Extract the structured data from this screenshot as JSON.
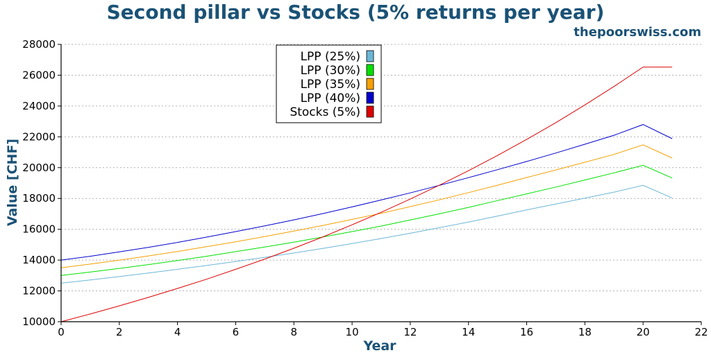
{
  "colors": {
    "title": "#1a5276",
    "grid": "#b0b0b0",
    "axis": "#000000"
  },
  "chart_data": {
    "type": "line",
    "title": "Second pillar vs Stocks (5% returns per year)",
    "watermark": "thepoorswiss.com",
    "xlabel": "Year",
    "ylabel": "Value [CHF]",
    "xlim": [
      0,
      22
    ],
    "ylim": [
      10000,
      28000
    ],
    "xticks": [
      0,
      2,
      4,
      6,
      8,
      10,
      12,
      14,
      16,
      18,
      20,
      22
    ],
    "yticks": [
      10000,
      12000,
      14000,
      16000,
      18000,
      20000,
      22000,
      24000,
      26000,
      28000
    ],
    "grid": "horizontal dotted",
    "legend_position": "top-center",
    "x": [
      0,
      1,
      2,
      3,
      4,
      5,
      6,
      7,
      8,
      9,
      10,
      11,
      12,
      13,
      14,
      15,
      16,
      17,
      18,
      19,
      20,
      21
    ],
    "series": [
      {
        "name": "LPP (25%)",
        "color": "#6bb6d6",
        "values": [
          12500,
          12710,
          12930,
          13160,
          13400,
          13650,
          13910,
          14180,
          14460,
          14760,
          15070,
          15400,
          15740,
          16100,
          16470,
          16860,
          17260,
          17640,
          18020,
          18410,
          18850,
          18030
        ]
      },
      {
        "name": "LPP (30%)",
        "color": "#00e000",
        "values": [
          13000,
          13220,
          13460,
          13710,
          13970,
          14250,
          14550,
          14850,
          15160,
          15500,
          15850,
          16210,
          16600,
          17000,
          17420,
          17860,
          18300,
          18740,
          19200,
          19660,
          20150,
          19330
        ]
      },
      {
        "name": "LPP (35%)",
        "color": "#f5a000",
        "values": [
          13500,
          13740,
          13990,
          14270,
          14560,
          14870,
          15190,
          15530,
          15880,
          16250,
          16640,
          17040,
          17470,
          17910,
          18380,
          18860,
          19360,
          19850,
          20350,
          20860,
          21480,
          20620
        ]
      },
      {
        "name": "LPP (40%)",
        "color": "#0000cc",
        "values": [
          14000,
          14250,
          14530,
          14830,
          15150,
          15490,
          15850,
          16220,
          16610,
          17020,
          17450,
          17900,
          18360,
          18850,
          19350,
          19870,
          20400,
          20950,
          21520,
          22100,
          22800,
          21880
        ]
      },
      {
        "name": "Stocks (5%)",
        "color": "#dd0000",
        "values": [
          10000,
          10500,
          11030,
          11580,
          12160,
          12760,
          13400,
          14070,
          14770,
          15510,
          16290,
          17100,
          17960,
          18860,
          19800,
          20790,
          21830,
          22920,
          24070,
          25270,
          26530,
          26530
        ]
      }
    ]
  }
}
